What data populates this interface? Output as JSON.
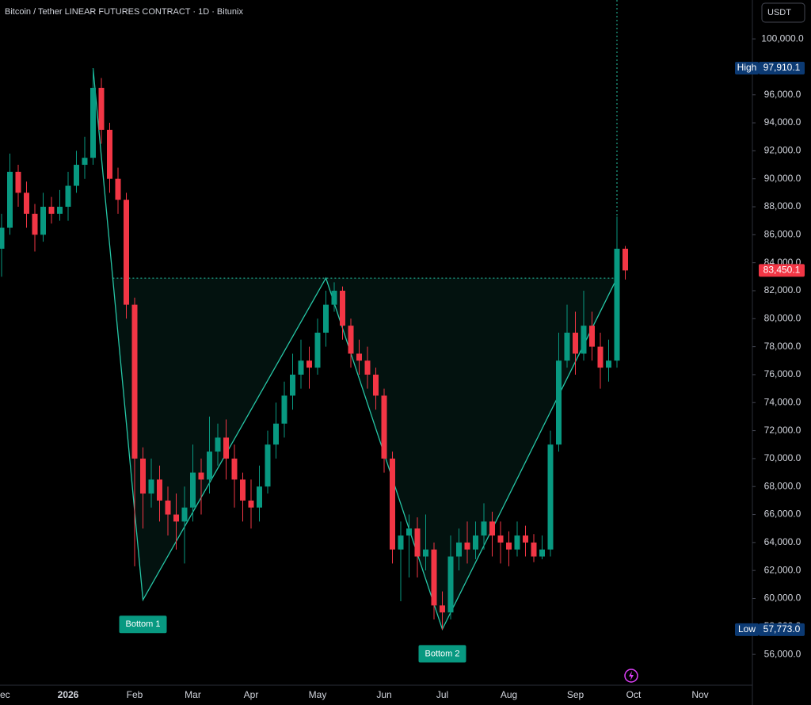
{
  "chart_data": {
    "type": "candlestick",
    "title": "Bitcoin / Tether LINEAR FUTURES CONTRACT · 1D · Bitunix",
    "currency": "USDT",
    "up_color": "#089981",
    "down_color": "#f23645",
    "pattern_color": "#26c6a6",
    "categories": [
      "Dec",
      null,
      null,
      null,
      null,
      null,
      null,
      null,
      "2026",
      null,
      null,
      null,
      null,
      null,
      null,
      null,
      "Feb",
      null,
      null,
      null,
      null,
      null,
      null,
      "Mar",
      null,
      null,
      null,
      null,
      null,
      null,
      "Apr",
      null,
      null,
      null,
      null,
      null,
      null,
      null,
      "May",
      null,
      null,
      null,
      null,
      null,
      null,
      null,
      "Jun",
      null,
      null,
      null,
      null,
      null,
      null,
      "Jul",
      null,
      null,
      null,
      null,
      null,
      null,
      null,
      "Aug",
      null,
      null,
      null,
      null,
      null,
      null,
      null,
      "Sep",
      null,
      null,
      null,
      null,
      null,
      null,
      "Oct",
      null,
      null,
      null,
      null,
      null,
      null,
      null,
      "Nov",
      null
    ],
    "open": [
      85000,
      86500,
      90500,
      89000,
      87500,
      86000,
      88000,
      87500,
      88000,
      89500,
      91000,
      91500,
      96500,
      93500,
      90000,
      88500,
      81000,
      70000,
      67500,
      68500,
      67000,
      66000,
      65500,
      66500,
      69000,
      68500,
      70500,
      71500,
      70000,
      68500,
      67000,
      66500,
      68000,
      71000,
      72500,
      74500,
      76000,
      77000,
      76500,
      79000,
      81000,
      82000,
      79500,
      77500,
      77000,
      76000,
      74500,
      70000,
      63500,
      64500,
      65000,
      63000,
      63500,
      59500,
      59000,
      63000,
      64000,
      63500,
      64500,
      65500,
      64500,
      64000,
      63500,
      64500,
      64000,
      63000,
      63500,
      71000,
      77000,
      79000,
      77500,
      79500,
      78000,
      76500,
      77000,
      85000,
      null,
      null,
      null,
      null,
      null,
      null,
      null,
      null,
      null,
      null
    ],
    "high": [
      87500,
      91800,
      91000,
      89800,
      88200,
      89000,
      88700,
      89200,
      90500,
      92000,
      93000,
      97910.1,
      97200,
      94000,
      90800,
      89000,
      81500,
      70800,
      70000,
      69500,
      68000,
      67500,
      68000,
      71000,
      70000,
      73000,
      72500,
      72800,
      71000,
      69000,
      68500,
      69500,
      72000,
      74000,
      75500,
      77500,
      78500,
      78000,
      80000,
      82000,
      82600,
      82300,
      80000,
      78500,
      78000,
      76500,
      75000,
      70500,
      65500,
      66000,
      65800,
      66000,
      64000,
      60500,
      64500,
      65000,
      65500,
      65500,
      66800,
      66200,
      65500,
      64800,
      65500,
      65200,
      64600,
      64500,
      72000,
      79000,
      81000,
      80500,
      82000,
      80500,
      79000,
      78500,
      87300,
      85200,
      null,
      null,
      null,
      null,
      null,
      null,
      null,
      null,
      null,
      null
    ],
    "low": [
      83000,
      86000,
      88000,
      86500,
      84800,
      85500,
      86800,
      87000,
      87000,
      89000,
      90000,
      91000,
      92500,
      89000,
      87500,
      80000,
      62300,
      65000,
      66500,
      65500,
      64500,
      63500,
      62500,
      65500,
      66000,
      67500,
      69500,
      68500,
      66500,
      65500,
      65000,
      65500,
      67500,
      70000,
      71500,
      73500,
      75000,
      75000,
      76000,
      78000,
      80500,
      78500,
      76500,
      76000,
      75000,
      73500,
      69000,
      62500,
      59800,
      61500,
      61500,
      62000,
      58500,
      57773,
      58500,
      62000,
      62500,
      62800,
      63500,
      63000,
      62500,
      62300,
      63000,
      63000,
      62600,
      62800,
      63000,
      70500,
      76500,
      76000,
      77000,
      77000,
      75000,
      75500,
      76500,
      82800,
      null,
      null,
      null,
      null,
      null,
      null,
      null,
      null,
      null,
      null
    ],
    "close": [
      86500,
      90500,
      89000,
      87500,
      86000,
      88000,
      87500,
      88000,
      89500,
      91000,
      91500,
      96500,
      93500,
      90000,
      88500,
      81000,
      70000,
      67500,
      68500,
      67000,
      66000,
      65500,
      66500,
      69000,
      68500,
      70500,
      71500,
      70000,
      68500,
      67000,
      66500,
      68000,
      71000,
      72500,
      74500,
      76000,
      77000,
      76500,
      79000,
      81000,
      82000,
      79500,
      77500,
      77000,
      76000,
      74500,
      70000,
      63500,
      64500,
      65000,
      63000,
      63500,
      59500,
      59000,
      63000,
      64000,
      63500,
      64500,
      65500,
      64500,
      64000,
      63500,
      64500,
      64000,
      63000,
      63500,
      71000,
      77000,
      79000,
      77500,
      79500,
      78000,
      76500,
      77000,
      85000,
      83450.1,
      null,
      null,
      null,
      null,
      null,
      null,
      null,
      null,
      null,
      null
    ],
    "ylim": [
      53800,
      102780
    ],
    "yticks": [
      {
        "value": 56000,
        "label": "56,000.0"
      },
      {
        "value": 58000,
        "label": "58,000.0"
      },
      {
        "value": 60000,
        "label": "60,000.0"
      },
      {
        "value": 62000,
        "label": "62,000.0"
      },
      {
        "value": 64000,
        "label": "64,000.0"
      },
      {
        "value": 66000,
        "label": "66,000.0"
      },
      {
        "value": 68000,
        "label": "68,000.0"
      },
      {
        "value": 70000,
        "label": "70,000.0"
      },
      {
        "value": 72000,
        "label": "72,000.0"
      },
      {
        "value": 74000,
        "label": "74,000.0"
      },
      {
        "value": 76000,
        "label": "76,000.0"
      },
      {
        "value": 78000,
        "label": "78,000.0"
      },
      {
        "value": 80000,
        "label": "80,000.0"
      },
      {
        "value": 82000,
        "label": "82,000.0"
      },
      {
        "value": 84000,
        "label": "84,000.0"
      },
      {
        "value": 86000,
        "label": "86,000.0"
      },
      {
        "value": 88000,
        "label": "88,000.0"
      },
      {
        "value": 90000,
        "label": "90,000.0"
      },
      {
        "value": 92000,
        "label": "92,000.0"
      },
      {
        "value": 94000,
        "label": "94,000.0"
      },
      {
        "value": 96000,
        "label": "96,000.0"
      },
      {
        "value": 98000,
        "label": "98,000.0"
      },
      {
        "value": 100000,
        "label": "100,000.0"
      }
    ],
    "price_markers": [
      {
        "label": "High",
        "value": 97910.1,
        "value_label": "97,910.1",
        "color": "#0c3a73"
      },
      {
        "value": 83450.1,
        "value_label": "83,450.1",
        "color": "#f23645"
      },
      {
        "label": "Low",
        "value": 57773,
        "value_label": "57,773.0",
        "color": "#0c3a73"
      }
    ],
    "pattern": {
      "neckline": 82900,
      "points": [
        {
          "index": 11,
          "price": 97910
        },
        {
          "index": 17,
          "price": 59900,
          "label": "Bottom 1"
        },
        {
          "index": 39,
          "price": 82900
        },
        {
          "index": 53,
          "price": 57800,
          "label": "Bottom 2"
        },
        {
          "index": 74,
          "price": 82900
        }
      ]
    }
  }
}
